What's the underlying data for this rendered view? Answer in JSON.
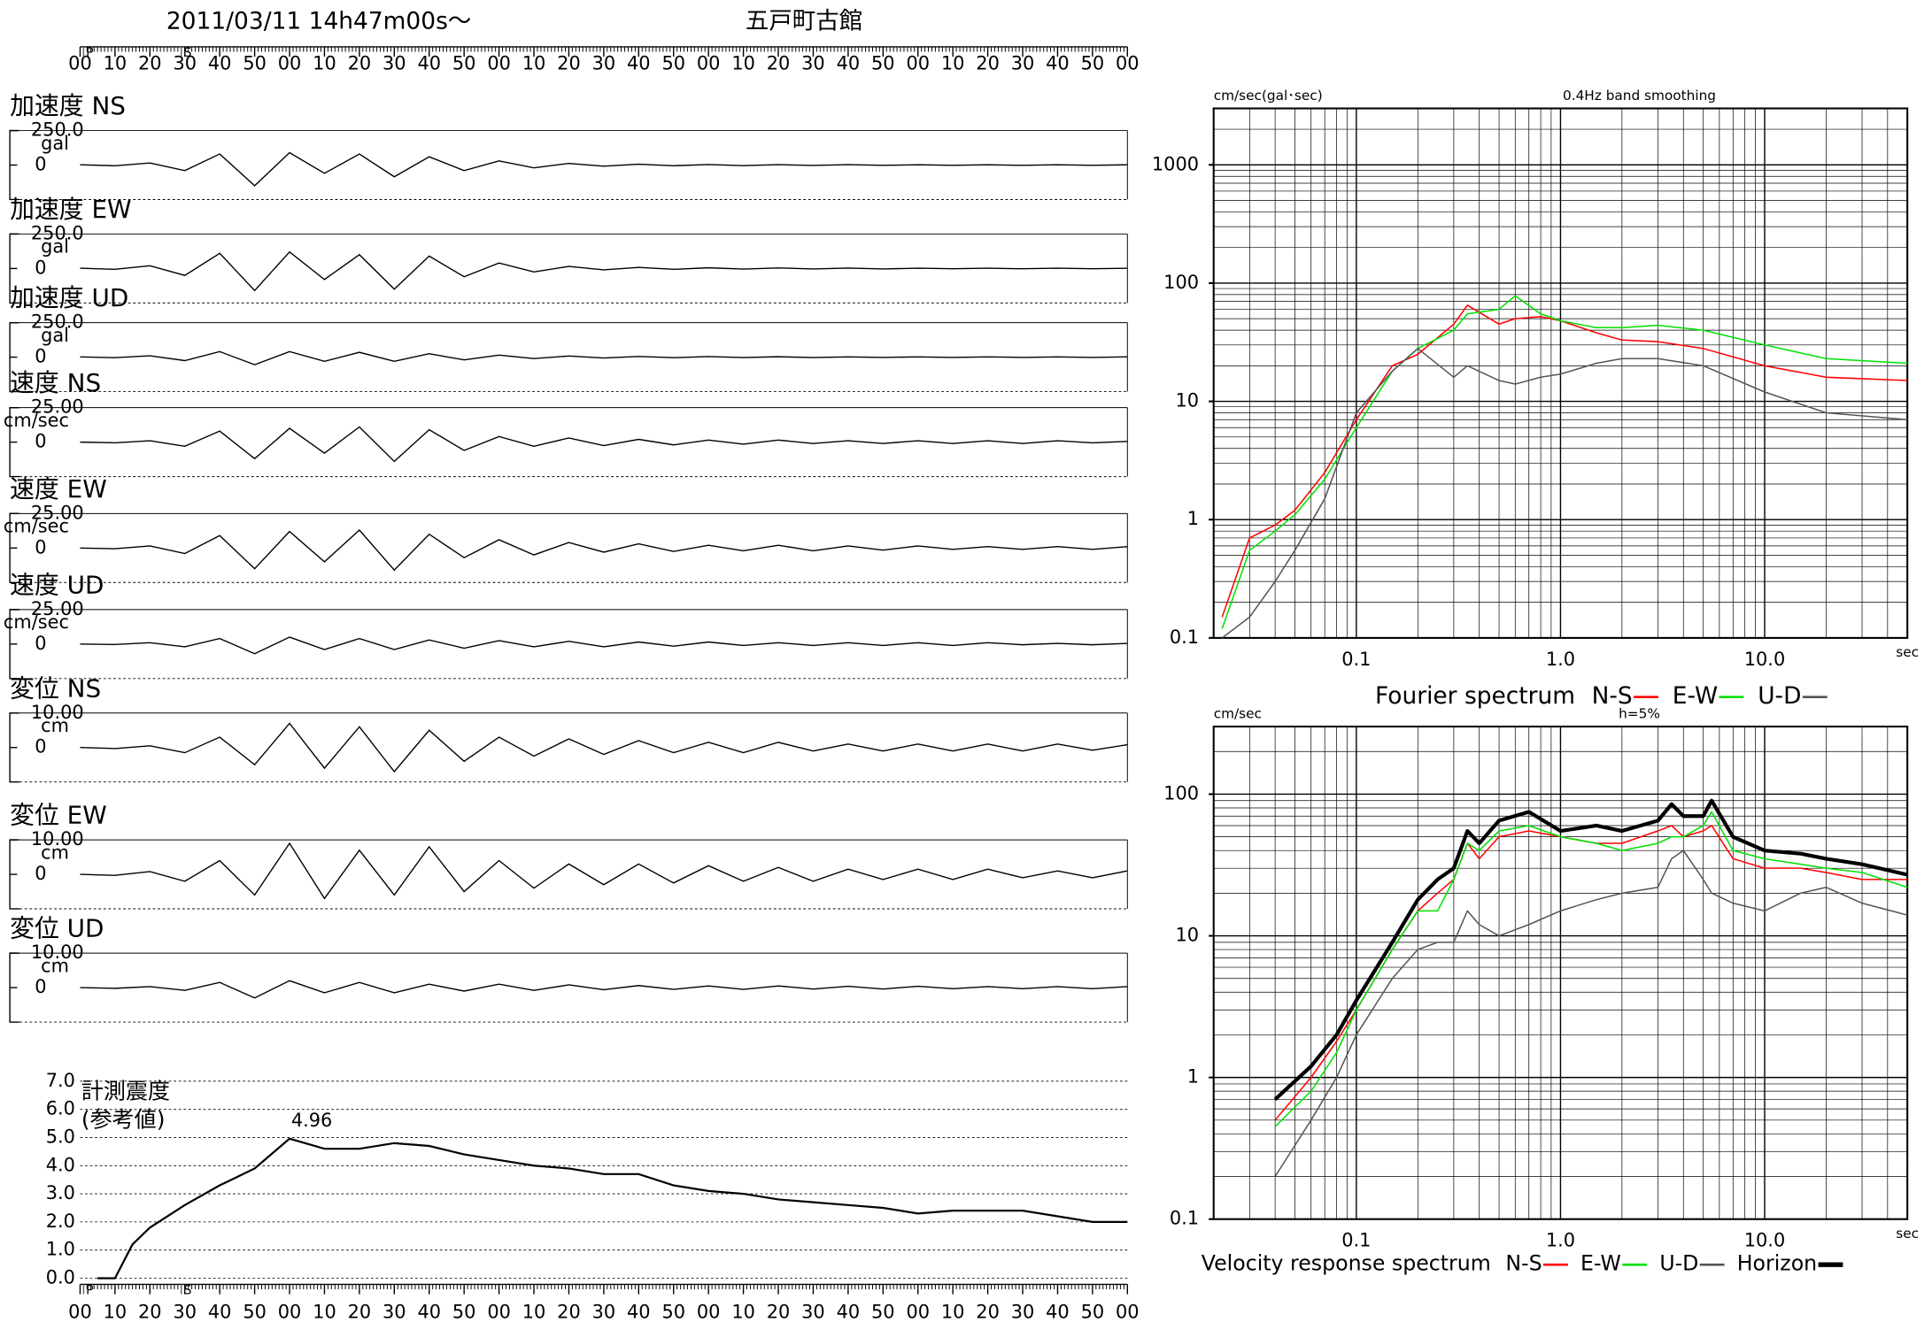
{
  "chart_data": [
    {
      "type": "waveform",
      "title": "2011/03/11  14h47m00s〜",
      "subtitle": "五戸町古館",
      "xlim": [
        0,
        300
      ],
      "xticks": [
        {
          "value": 0,
          "label": "00"
        },
        10,
        20,
        30,
        40,
        50,
        {
          "value": 60,
          "label": "00"
        },
        {
          "value": 70,
          "label": "10"
        },
        {
          "value": 80,
          "label": "20"
        },
        {
          "value": 90,
          "label": "30"
        },
        {
          "value": 100,
          "label": "40"
        },
        {
          "value": 110,
          "label": "50"
        },
        {
          "value": 120,
          "label": "00"
        },
        {
          "value": 130,
          "label": "10"
        },
        {
          "value": 140,
          "label": "20"
        },
        {
          "value": 150,
          "label": "30"
        },
        {
          "value": 160,
          "label": "40"
        },
        {
          "value": 170,
          "label": "50"
        },
        {
          "value": 180,
          "label": "00"
        },
        {
          "value": 190,
          "label": "10"
        },
        {
          "value": 200,
          "label": "20"
        },
        {
          "value": 210,
          "label": "30"
        },
        {
          "value": 220,
          "label": "40"
        },
        {
          "value": 230,
          "label": "50"
        },
        {
          "value": 240,
          "label": "00"
        },
        {
          "value": 250,
          "label": "10"
        },
        {
          "value": 260,
          "label": "20"
        },
        {
          "value": 270,
          "label": "30"
        },
        {
          "value": 280,
          "label": "40"
        },
        {
          "value": 290,
          "label": "50"
        },
        {
          "value": 300,
          "label": "00"
        }
      ],
      "phases": [
        {
          "label": "P",
          "value": 1
        },
        {
          "label": "S",
          "value": 29
        }
      ],
      "x": [
        0,
        10,
        20,
        30,
        40,
        50,
        60,
        70,
        80,
        90,
        100,
        110,
        120,
        130,
        140,
        150,
        160,
        170,
        180,
        190,
        200,
        210,
        220,
        230,
        240,
        250,
        260,
        270,
        280,
        290,
        300
      ],
      "color": "#000000",
      "series": [
        {
          "name": "加速度 NS",
          "unit": "gal",
          "ylim": [
            -250,
            250
          ],
          "yticks": [
            0,
            {
              "value": 250,
              "label": "250.0"
            }
          ],
          "values": [
            2,
            -5,
            15,
            -40,
            80,
            -150,
            90,
            -60,
            80,
            -85,
            60,
            -40,
            30,
            -20,
            12,
            -8,
            6,
            -5,
            4,
            -4,
            3,
            -3,
            3,
            -2,
            2,
            -2,
            2,
            -2,
            2,
            -2,
            2
          ]
        },
        {
          "name": "加速度 EW",
          "unit": "gal",
          "ylim": [
            -250,
            250
          ],
          "yticks": [
            0,
            {
              "value": 250,
              "label": "250.0"
            }
          ],
          "values": [
            2,
            -6,
            20,
            -50,
            110,
            -160,
            120,
            -80,
            100,
            -150,
            90,
            -60,
            40,
            -25,
            15,
            -10,
            8,
            -6,
            5,
            -4,
            4,
            -3,
            3,
            -3,
            2,
            -2,
            2,
            -2,
            2,
            -2,
            2
          ]
        },
        {
          "name": "加速度 UD",
          "unit": "gal",
          "ylim": [
            -250,
            250
          ],
          "yticks": [
            0,
            {
              "value": 250,
              "label": "250.0"
            }
          ],
          "values": [
            2,
            -4,
            10,
            -25,
            40,
            -55,
            40,
            -30,
            35,
            -30,
            25,
            -20,
            15,
            -10,
            8,
            -6,
            5,
            -4,
            4,
            -3,
            3,
            -3,
            2,
            -2,
            2,
            -2,
            2,
            -2,
            2,
            -2,
            2
          ]
        },
        {
          "name": "速度 NS",
          "unit": "cm/sec",
          "ylim": [
            -25,
            25
          ],
          "yticks": [
            0,
            {
              "value": 25,
              "label": "25.00"
            }
          ],
          "values": [
            0,
            -0.5,
            1,
            -3,
            8,
            -12,
            10,
            -8,
            11,
            -14,
            9,
            -6,
            4,
            -3,
            3,
            -2.5,
            2,
            -2,
            1.5,
            -1.5,
            1.5,
            -1,
            1,
            -1,
            1,
            -1,
            1,
            -1,
            1,
            -0.5,
            0.5
          ]
        },
        {
          "name": "速度 EW",
          "unit": "cm/sec",
          "ylim": [
            -25,
            25
          ],
          "yticks": [
            0,
            {
              "value": 25,
              "label": "25.00"
            }
          ],
          "values": [
            0,
            -0.5,
            1.5,
            -4,
            9,
            -15,
            12,
            -10,
            13,
            -16,
            10,
            -7,
            6,
            -5,
            4,
            -3,
            3,
            -2.5,
            2,
            -2,
            2,
            -2,
            1.5,
            -1.5,
            1.5,
            -1,
            1,
            -1,
            1,
            -1,
            1
          ]
        },
        {
          "name": "速度 UD",
          "unit": "cm/sec",
          "ylim": [
            -25,
            25
          ],
          "yticks": [
            0,
            {
              "value": 25,
              "label": "25.00"
            }
          ],
          "values": [
            0,
            -0.3,
            1,
            -2,
            4,
            -7,
            5,
            -4,
            4,
            -4,
            3,
            -3,
            2.5,
            -2,
            2,
            -2,
            1.5,
            -1.5,
            1.5,
            -1,
            1,
            -1,
            1,
            -1,
            1,
            -1,
            1,
            -0.5,
            0.5,
            -0.5,
            0.5
          ]
        },
        {
          "name": "変位 NS",
          "unit": "cm",
          "ylim": [
            -10,
            10
          ],
          "yticks": [
            0,
            {
              "value": 10,
              "label": "10.00"
            }
          ],
          "values": [
            0,
            -0.3,
            0.5,
            -1.5,
            3,
            -5,
            7,
            -6,
            6,
            -7,
            5,
            -4,
            3,
            -2.5,
            2.5,
            -2,
            2,
            -1.5,
            1.5,
            -1.5,
            1.5,
            -1,
            1,
            -1,
            1,
            -1,
            1,
            -1,
            1,
            -0.8,
            0.8
          ]
        },
        {
          "name": "変位 EW",
          "unit": "cm",
          "ylim": [
            -10,
            10
          ],
          "yticks": [
            0,
            {
              "value": 10,
              "label": "10.00"
            }
          ],
          "values": [
            0,
            -0.3,
            0.8,
            -2,
            4,
            -6,
            9,
            -7,
            7,
            -6,
            8,
            -5,
            4,
            -4,
            3,
            -3,
            3,
            -2.5,
            2.5,
            -2,
            2,
            -2,
            1.5,
            -1.5,
            1.5,
            -1.5,
            1.5,
            -1,
            1,
            -1,
            1
          ]
        },
        {
          "name": "変位 UD",
          "unit": "cm",
          "ylim": [
            -10,
            10
          ],
          "yticks": [
            0,
            {
              "value": 10,
              "label": "10.00"
            }
          ],
          "values": [
            0,
            -0.2,
            0.3,
            -0.8,
            1.5,
            -3,
            2,
            -1.5,
            1.5,
            -1.5,
            1,
            -1,
            1,
            -0.8,
            0.8,
            -0.6,
            0.6,
            -0.5,
            0.5,
            -0.5,
            0.5,
            -0.4,
            0.4,
            -0.4,
            0.4,
            -0.3,
            0.3,
            -0.3,
            0.3,
            -0.3,
            0.3
          ]
        }
      ]
    },
    {
      "type": "line",
      "title": "計測震度",
      "subtitle": "(参考値)",
      "color": "#000000",
      "grid": true,
      "ylim": [
        0,
        7
      ],
      "yticks": [
        {
          "value": 0,
          "label": "0.0"
        },
        {
          "value": 1,
          "label": "1.0"
        },
        {
          "value": 2,
          "label": "2.0"
        },
        {
          "value": 3,
          "label": "3.0"
        },
        {
          "value": 4,
          "label": "4.0"
        },
        {
          "value": 5,
          "label": "5.0"
        },
        {
          "value": 6,
          "label": "6.0"
        },
        {
          "value": 7,
          "label": "7.0"
        }
      ],
      "x": [
        5,
        10,
        15,
        20,
        30,
        40,
        50,
        60,
        70,
        80,
        90,
        100,
        110,
        120,
        130,
        140,
        150,
        160,
        170,
        180,
        190,
        200,
        210,
        220,
        230,
        240,
        250,
        260,
        270,
        280,
        290,
        300
      ],
      "values": [
        0,
        0,
        1.2,
        1.8,
        2.6,
        3.3,
        3.9,
        4.96,
        4.6,
        4.6,
        4.8,
        4.7,
        4.4,
        4.2,
        4.0,
        3.9,
        3.7,
        3.7,
        3.3,
        3.1,
        3.0,
        2.8,
        2.7,
        2.6,
        2.5,
        2.3,
        2.4,
        2.4,
        2.4,
        2.2,
        2.0,
        2.0
      ]
    },
    {
      "type": "line",
      "title": "Fourier spectrum",
      "subtitle": "0.4Hz band smoothing",
      "x_label": "sec",
      "y_label": "cm/sec(gal･sec)",
      "xscale": "log",
      "yscale": "log",
      "grid": true,
      "xlim": [
        0.02,
        50
      ],
      "ylim": [
        0.1,
        3000
      ],
      "xticks": [
        0.1,
        {
          "value": 1,
          "label": "1.0"
        },
        {
          "value": 10,
          "label": "10.0"
        }
      ],
      "yticks": [
        0.1,
        1,
        10,
        100,
        1000
      ],
      "x": [
        0.022,
        0.03,
        0.04,
        0.05,
        0.07,
        0.1,
        0.15,
        0.2,
        0.3,
        0.35,
        0.5,
        0.6,
        0.8,
        1,
        1.5,
        2,
        3,
        5,
        10,
        20,
        50
      ],
      "series": [
        {
          "name": "N-S",
          "color": "#ff0000",
          "values": [
            0.15,
            0.7,
            0.9,
            1.2,
            2.5,
            7,
            20,
            25,
            45,
            65,
            45,
            50,
            52,
            48,
            38,
            33,
            32,
            28,
            20,
            16,
            15
          ]
        },
        {
          "name": "E-W",
          "color": "#00e000",
          "values": [
            0.12,
            0.55,
            0.8,
            1.1,
            2.2,
            6,
            18,
            28,
            40,
            55,
            60,
            78,
            55,
            48,
            42,
            42,
            44,
            40,
            30,
            23,
            21
          ]
        },
        {
          "name": "U-D",
          "color": "#555555",
          "values": [
            0.1,
            0.15,
            0.3,
            0.55,
            1.5,
            8,
            18,
            28,
            16,
            20,
            15,
            14,
            16,
            17,
            21,
            23,
            23,
            20,
            12,
            8,
            7
          ]
        }
      ]
    },
    {
      "type": "line",
      "title": "Velocity response spectrum",
      "subtitle": "h=5%",
      "x_label": "sec",
      "y_label": "cm/sec",
      "xscale": "log",
      "yscale": "log",
      "grid": true,
      "xlim": [
        0.02,
        50
      ],
      "ylim": [
        0.1,
        300
      ],
      "xticks": [
        0.1,
        {
          "value": 1,
          "label": "1.0"
        },
        {
          "value": 10,
          "label": "10.0"
        }
      ],
      "yticks": [
        0.1,
        1,
        10,
        100
      ],
      "x": [
        0.04,
        0.06,
        0.08,
        0.1,
        0.15,
        0.2,
        0.25,
        0.3,
        0.35,
        0.4,
        0.5,
        0.7,
        1,
        1.5,
        2,
        3,
        3.5,
        4,
        5,
        5.5,
        7,
        10,
        15,
        20,
        30,
        50
      ],
      "series": [
        {
          "name": "N-S",
          "color": "#ff0000",
          "values": [
            0.5,
            1,
            1.8,
            3,
            8,
            15,
            20,
            25,
            45,
            35,
            50,
            55,
            50,
            45,
            45,
            55,
            60,
            50,
            55,
            60,
            35,
            30,
            30,
            28,
            25,
            25
          ]
        },
        {
          "name": "E-W",
          "color": "#00e000",
          "values": [
            0.45,
            0.8,
            1.5,
            3,
            8,
            15,
            15,
            25,
            45,
            40,
            55,
            60,
            50,
            45,
            40,
            45,
            50,
            50,
            60,
            75,
            40,
            35,
            32,
            30,
            28,
            22
          ]
        },
        {
          "name": "U-D",
          "color": "#555555",
          "values": [
            0.2,
            0.5,
            1,
            2,
            5,
            8,
            9,
            9,
            15,
            12,
            10,
            12,
            15,
            18,
            20,
            22,
            35,
            40,
            25,
            20,
            17,
            15,
            20,
            22,
            17,
            14
          ]
        },
        {
          "name": "Horizon",
          "color": "#000000",
          "width": 3,
          "values": [
            0.7,
            1.2,
            2,
            3.5,
            9,
            18,
            25,
            30,
            55,
            45,
            65,
            75,
            55,
            60,
            55,
            65,
            85,
            70,
            70,
            90,
            50,
            40,
            38,
            35,
            32,
            27
          ]
        }
      ]
    }
  ]
}
